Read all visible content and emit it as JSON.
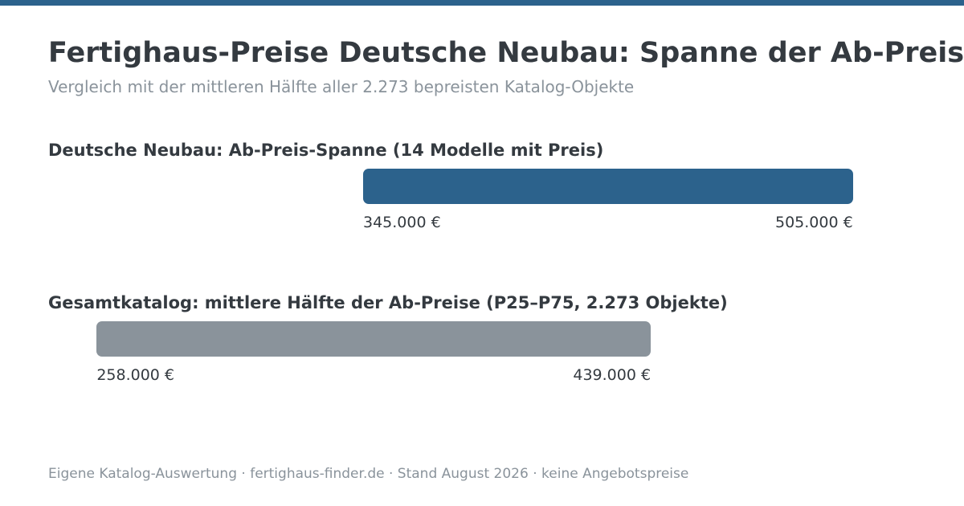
{
  "header": {
    "title": "Fertighaus-Preise Deutsche Neubau: Spanne der Ab-Preise",
    "subtitle": "Vergleich mit der mittleren Hälfte aller 2.273 bepreisten Katalog-Objekte"
  },
  "footer": {
    "text": "Eigene Katalog-Auswertung · fertighaus-finder.de · Stand August 2026 · keine Angebotspreise"
  },
  "colors": {
    "accent": "#2c628c",
    "comparison": "#8a939b",
    "top_bar": "#2c628c"
  },
  "chart_data": {
    "type": "range-bar",
    "unit": "€",
    "ranges": [
      {
        "label": "Deutsche Neubau: Ab-Preis-Spanne (14 Modelle mit Preis)",
        "min": 345000,
        "max": 505000,
        "min_label": "345.000 €",
        "max_label": "505.000 €",
        "color": "#2c628c"
      },
      {
        "label": "Gesamtkatalog: mittlere Hälfte der Ab-Preise (P25–P75, 2.273 Objekte)",
        "min": 258000,
        "max": 439000,
        "min_label": "258.000 €",
        "max_label": "439.000 €",
        "color": "#8a939b"
      }
    ]
  }
}
